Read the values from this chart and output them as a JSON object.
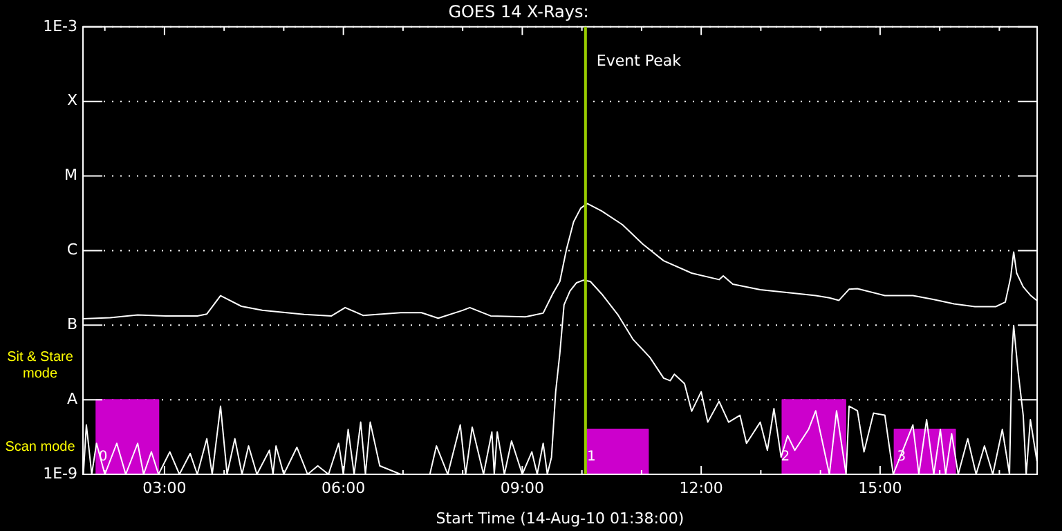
{
  "chart_data": {
    "type": "line",
    "title": "GOES 14 X-Rays:",
    "xlabel": "Start Time (14-Aug-10 01:38:00)",
    "log": "y",
    "grid": "y",
    "legend": false,
    "marker": "none",
    "line_style": "solid",
    "xlim": [
      1.633,
      17.633
    ],
    "xticks": [
      {
        "value": 2,
        "label": null
      },
      {
        "value": 3,
        "label": "03:00"
      },
      {
        "value": 4,
        "label": null
      },
      {
        "value": 5,
        "label": null
      },
      {
        "value": 6,
        "label": "06:00"
      },
      {
        "value": 7,
        "label": null
      },
      {
        "value": 8,
        "label": null
      },
      {
        "value": 9,
        "label": "09:00"
      },
      {
        "value": 10,
        "label": null
      },
      {
        "value": 11,
        "label": null
      },
      {
        "value": 12,
        "label": "12:00"
      },
      {
        "value": 13,
        "label": null
      },
      {
        "value": 14,
        "label": null
      },
      {
        "value": 15,
        "label": "15:00"
      },
      {
        "value": 16,
        "label": null
      },
      {
        "value": 17,
        "label": null
      }
    ],
    "ylim": [
      1e-09,
      0.001
    ],
    "yticks": [
      {
        "value": 1e-09,
        "label": "1E-9"
      },
      {
        "value": 1e-08,
        "label": "A"
      },
      {
        "value": 1e-07,
        "label": "B"
      },
      {
        "value": 1e-06,
        "label": "C"
      },
      {
        "value": 1e-05,
        "label": "M"
      },
      {
        "value": 0.0001,
        "label": "X"
      },
      {
        "value": 0.001,
        "label": "1E-3"
      }
    ],
    "series": [
      {
        "type": "area",
        "color": "#cc00cc",
        "x": [
          1.633,
          1.856,
          1.856,
          2.9,
          2.9,
          10.09,
          10.09,
          11.11,
          11.11,
          13.36,
          13.36,
          14.42,
          14.42,
          15.24,
          15.24,
          16.26,
          16.26,
          17.633
        ],
        "values": [
          1e-09,
          1e-09,
          1e-08,
          1e-08,
          1e-09,
          1e-09,
          4e-09,
          4e-09,
          1e-09,
          1e-09,
          1e-08,
          1e-08,
          1e-09,
          1e-09,
          4e-09,
          4e-09,
          1e-09,
          1e-09
        ]
      },
      {
        "color": "#ffffff",
        "x": [
          1.64,
          2.09,
          2.55,
          3.02,
          3.55,
          3.71,
          3.94,
          4.29,
          4.64,
          5.34,
          5.8,
          6.03,
          6.33,
          6.96,
          7.31,
          7.59,
          8.0,
          8.12,
          8.47,
          9.05,
          9.35,
          9.51,
          9.63,
          9.74,
          9.86,
          9.98,
          10.09,
          10.33,
          10.68,
          11.02,
          11.37,
          11.84,
          12.3,
          12.37,
          12.53,
          12.99,
          13.57,
          13.92,
          14.15,
          14.31,
          14.48,
          14.62,
          15.08,
          15.55,
          15.89,
          16.24,
          16.59,
          16.94,
          17.1,
          17.19,
          17.24,
          17.29,
          17.4,
          17.52,
          17.63
        ],
        "values": [
          1.22e-07,
          1.26e-07,
          1.37e-07,
          1.33e-07,
          1.33e-07,
          1.41e-07,
          2.49e-07,
          1.79e-07,
          1.58e-07,
          1.39e-07,
          1.33e-07,
          1.72e-07,
          1.35e-07,
          1.47e-07,
          1.47e-07,
          1.24e-07,
          1.58e-07,
          1.72e-07,
          1.33e-07,
          1.29e-07,
          1.45e-07,
          2.63e-07,
          3.86e-07,
          1.03e-06,
          2.42e-06,
          3.7e-06,
          4.27e-06,
          3.4e-06,
          2.22e-06,
          1.22e-06,
          7.3e-07,
          4.99e-07,
          4.08e-07,
          4.58e-07,
          3.55e-07,
          2.99e-07,
          2.67e-07,
          2.49e-07,
          2.32e-07,
          2.15e-07,
          3.03e-07,
          3.08e-07,
          2.49e-07,
          2.49e-07,
          2.22e-07,
          1.93e-07,
          1.77e-07,
          1.77e-07,
          2.04e-07,
          4.4e-07,
          9.57e-07,
          4.99e-07,
          3.26e-07,
          2.52e-07,
          2.13e-07
        ]
      },
      {
        "color": "#ffffff",
        "x": [
          1.64,
          1.69,
          1.78,
          1.86,
          2.0,
          2.2,
          2.35,
          2.55,
          2.65,
          2.78,
          2.9,
          3.09,
          3.25,
          3.43,
          3.55,
          3.71,
          3.8,
          3.94,
          4.05,
          4.18,
          4.3,
          4.41,
          4.55,
          4.76,
          4.82,
          4.87,
          5.0,
          5.22,
          5.4,
          5.57,
          5.75,
          5.92,
          6.0,
          6.08,
          6.18,
          6.29,
          6.37,
          6.45,
          6.61,
          6.96,
          7.31,
          7.45,
          7.56,
          7.75,
          7.96,
          8.05,
          8.16,
          8.35,
          8.49,
          8.53,
          8.58,
          8.7,
          8.82,
          9.0,
          9.16,
          9.25,
          9.35,
          9.42,
          9.49,
          9.56,
          9.63,
          9.7,
          9.8,
          9.91,
          10.02,
          10.14,
          10.33,
          10.6,
          10.86,
          11.14,
          11.37,
          11.48,
          11.55,
          11.72,
          11.84,
          12.0,
          12.11,
          12.3,
          12.46,
          12.65,
          12.76,
          12.99,
          13.11,
          13.22,
          13.34,
          13.45,
          13.57,
          13.8,
          13.92,
          14.15,
          14.27,
          14.43,
          14.48,
          14.62,
          14.73,
          14.89,
          15.08,
          15.22,
          15.36,
          15.55,
          15.65,
          15.78,
          15.9,
          16.01,
          16.1,
          16.2,
          16.31,
          16.47,
          16.61,
          16.75,
          16.89,
          17.05,
          17.17,
          17.21,
          17.24,
          17.31,
          17.4,
          17.45,
          17.52,
          17.63
        ],
        "values": [
          1e-09,
          4.6e-09,
          1e-09,
          2.6e-09,
          1e-09,
          2.6e-09,
          1e-09,
          2.6e-09,
          1e-09,
          2e-09,
          1e-09,
          2e-09,
          1e-09,
          1.9e-09,
          1e-09,
          3e-09,
          1e-09,
          8.2e-09,
          1e-09,
          3e-09,
          1e-09,
          2.4e-09,
          1e-09,
          2.1e-09,
          1e-09,
          2.4e-09,
          1e-09,
          2.3e-09,
          1e-09,
          1.3e-09,
          1e-09,
          2.6e-09,
          1e-09,
          4e-09,
          1e-09,
          5e-09,
          1e-09,
          5e-09,
          1.3e-09,
          1e-09,
          1e-09,
          1e-09,
          2.4e-09,
          1e-09,
          4.6e-09,
          1e-09,
          4.3e-09,
          1e-09,
          3.7e-09,
          1e-09,
          3.7e-09,
          1e-09,
          2.8e-09,
          1e-09,
          2e-09,
          1e-09,
          2.6e-09,
          1e-09,
          1.7e-09,
          1.28e-08,
          4.2e-08,
          1.87e-07,
          2.87e-07,
          3.7e-07,
          4e-07,
          3.86e-07,
          2.63e-07,
          1.39e-07,
          6.4e-08,
          3.7e-08,
          1.95e-08,
          1.8e-08,
          2.2e-08,
          1.65e-08,
          7e-09,
          1.28e-08,
          5e-09,
          9.5e-09,
          5e-09,
          6.2e-09,
          2.6e-09,
          5e-09,
          2.1e-09,
          7.6e-09,
          1.7e-09,
          3.3e-09,
          2.1e-09,
          4e-09,
          7.1e-09,
          1e-09,
          7.1e-09,
          1e-09,
          8.2e-09,
          7.1e-09,
          2e-09,
          6.6e-09,
          6.2e-09,
          1e-09,
          1.9e-09,
          4.6e-09,
          1e-09,
          5.4e-09,
          1e-09,
          4e-09,
          1e-09,
          3.5e-09,
          1e-09,
          3e-09,
          1e-09,
          2.4e-09,
          1e-09,
          4e-09,
          1e-09,
          3.9e-08,
          9.9e-08,
          2.55e-08,
          6.2e-09,
          1e-09,
          5.4e-09,
          1.5e-09
        ]
      }
    ],
    "ref_lines": [
      {
        "axis": "x",
        "value": 10.06,
        "label": "Event Peak",
        "color": "#99cc00"
      }
    ],
    "annotations": [
      "Sit & Stare mode",
      "Scan mode",
      {
        "text": "0",
        "x": 1.97,
        "y": 1.7e-09
      },
      {
        "text": "1",
        "x": 10.16,
        "y": 1.7e-09
      },
      {
        "text": "2",
        "x": 13.41,
        "y": 1.7e-09
      },
      {
        "text": "3",
        "x": 15.36,
        "y": 1.7e-09
      }
    ]
  }
}
